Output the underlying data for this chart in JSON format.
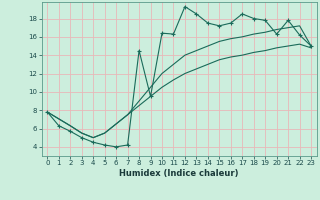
{
  "xlabel": "Humidex (Indice chaleur)",
  "bg_color": "#cceedd",
  "grid_color": "#e8b8b8",
  "line_color": "#1a6b5a",
  "xlim": [
    -0.5,
    23.5
  ],
  "ylim": [
    3.0,
    19.8
  ],
  "yticks": [
    4,
    6,
    8,
    10,
    12,
    14,
    16,
    18
  ],
  "xticks": [
    0,
    1,
    2,
    3,
    4,
    5,
    6,
    7,
    8,
    9,
    10,
    11,
    12,
    13,
    14,
    15,
    16,
    17,
    18,
    19,
    20,
    21,
    22,
    23
  ],
  "line1_x": [
    0,
    1,
    2,
    3,
    4,
    5,
    6,
    7,
    8,
    9,
    10,
    11,
    12,
    13,
    14,
    15,
    16,
    17,
    18,
    19,
    20,
    21,
    22,
    23
  ],
  "line1_y": [
    7.8,
    6.3,
    5.7,
    5.0,
    4.5,
    4.2,
    4.0,
    4.2,
    14.5,
    9.5,
    16.4,
    16.3,
    19.3,
    18.5,
    17.5,
    17.2,
    17.5,
    18.5,
    18.0,
    17.8,
    16.3,
    17.8,
    16.2,
    15.0
  ],
  "line2_x": [
    0,
    2,
    3,
    4,
    5,
    6,
    7,
    8,
    9,
    10,
    11,
    12,
    13,
    14,
    15,
    16,
    17,
    18,
    19,
    20,
    21,
    22,
    23
  ],
  "line2_y": [
    7.8,
    6.3,
    5.5,
    5.0,
    5.5,
    6.5,
    7.5,
    9.0,
    10.5,
    12.0,
    13.0,
    14.0,
    14.5,
    15.0,
    15.5,
    15.8,
    16.0,
    16.3,
    16.5,
    16.8,
    17.0,
    17.2,
    15.0
  ],
  "line3_x": [
    0,
    2,
    3,
    4,
    5,
    6,
    7,
    8,
    9,
    10,
    11,
    12,
    13,
    14,
    15,
    16,
    17,
    18,
    19,
    20,
    21,
    22,
    23
  ],
  "line3_y": [
    7.8,
    6.3,
    5.5,
    5.0,
    5.5,
    6.5,
    7.5,
    8.5,
    9.5,
    10.5,
    11.3,
    12.0,
    12.5,
    13.0,
    13.5,
    13.8,
    14.0,
    14.3,
    14.5,
    14.8,
    15.0,
    15.2,
    14.8
  ]
}
